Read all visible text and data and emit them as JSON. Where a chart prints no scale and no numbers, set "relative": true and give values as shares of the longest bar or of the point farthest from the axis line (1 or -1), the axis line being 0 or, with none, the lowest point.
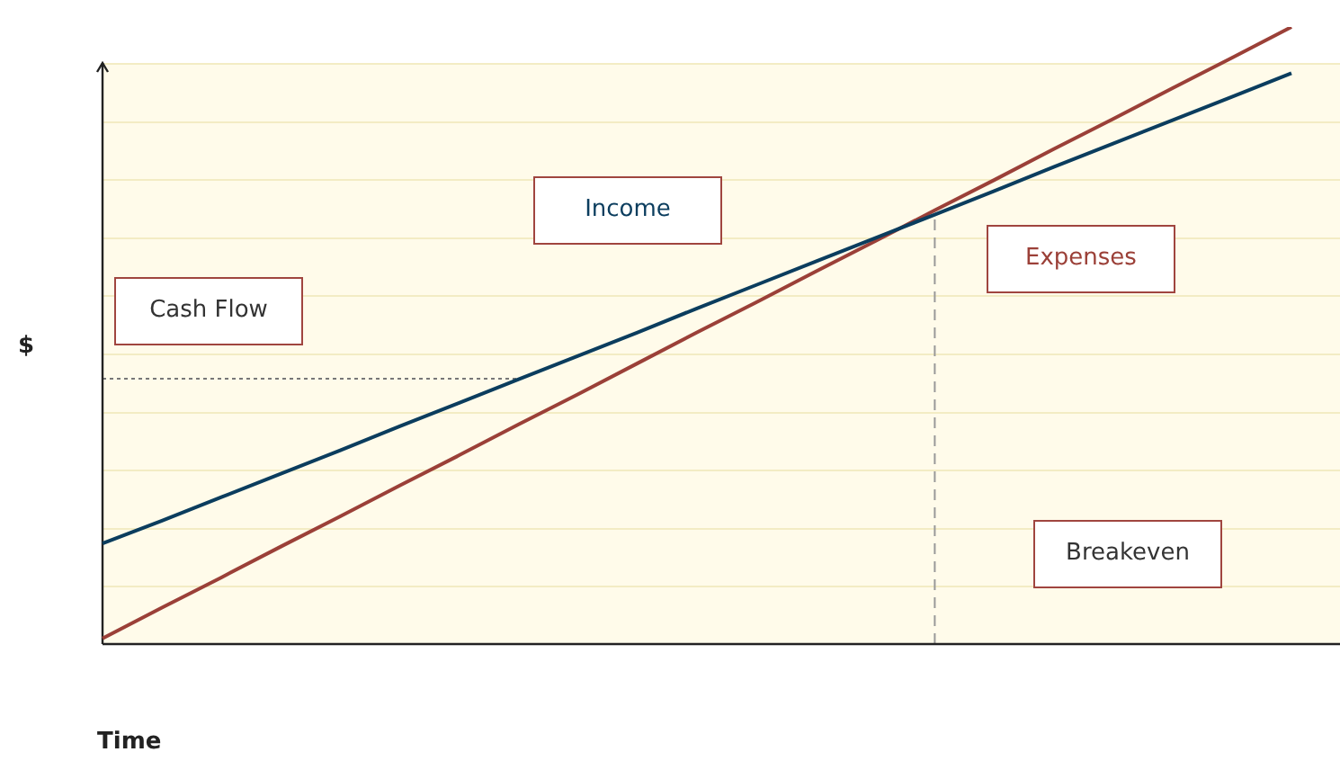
{
  "chart_data": {
    "type": "line",
    "relative": true,
    "xlabel": "Time",
    "ylabel": "$",
    "legend": false,
    "marker": "none",
    "categories": [
      null,
      null,
      null,
      null,
      null,
      null,
      null,
      null,
      null,
      null,
      null,
      null,
      null,
      null,
      null,
      null,
      null,
      null,
      null,
      null,
      null
    ],
    "series": [
      {
        "name": "Income",
        "color": "#0b3d5e",
        "values": [
          0.163,
          0.2,
          0.238,
          0.276,
          0.314,
          0.353,
          0.391,
          0.429,
          0.467,
          0.505,
          0.544,
          0.582,
          0.62,
          0.658,
          0.696,
          0.734,
          0.773,
          0.811,
          0.849,
          0.887,
          0.925
        ]
      },
      {
        "name": "Expenses",
        "color": "#9b4038",
        "values": [
          0.009,
          0.059,
          0.108,
          0.158,
          0.207,
          0.257,
          0.306,
          0.356,
          0.405,
          0.455,
          0.505,
          0.554,
          0.604,
          0.653,
          0.703,
          0.752,
          0.802,
          0.851,
          0.901,
          0.95,
          1
        ]
      }
    ],
    "ref_lines": [
      {
        "axis": "x",
        "label": "Breakeven",
        "color": "#999999",
        "line_style": "dashed"
      },
      {
        "axis": "y",
        "value": 0.43,
        "label": "Cash Flow",
        "color": "#777777",
        "line_style": "dotted"
      }
    ]
  }
}
